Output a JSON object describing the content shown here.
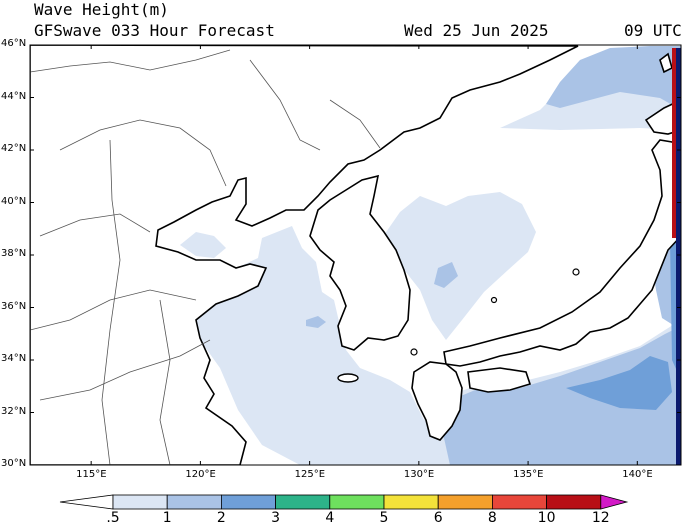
{
  "header": {
    "title": "Wave Height(m)",
    "subtitle": "GFSwave 033 Hour Forecast",
    "date": "Wed 25 Jun 2025",
    "time": "09 UTC"
  },
  "map": {
    "lat_labels": [
      "30°N",
      "32°N",
      "34°N",
      "36°N",
      "38°N",
      "40°N",
      "42°N",
      "44°N",
      "46°N"
    ],
    "lon_labels": [
      "115°E",
      "120°E",
      "125°E",
      "130°E",
      "135°E",
      "140°E"
    ],
    "lat_range": [
      30,
      46
    ],
    "lon_range": [
      112.2,
      142
    ]
  },
  "colorbar": {
    "labels": [
      ".5",
      "1",
      "2",
      "3",
      "4",
      "5",
      "6",
      "8",
      "10",
      "12"
    ],
    "colors": [
      "#ffffff",
      "#dce6f4",
      "#aac3e6",
      "#6f9fd8",
      "#2db389",
      "#6ee05e",
      "#f3e23a",
      "#f4a02c",
      "#e8463a",
      "#b80f16",
      "#d21ac6"
    ]
  }
}
